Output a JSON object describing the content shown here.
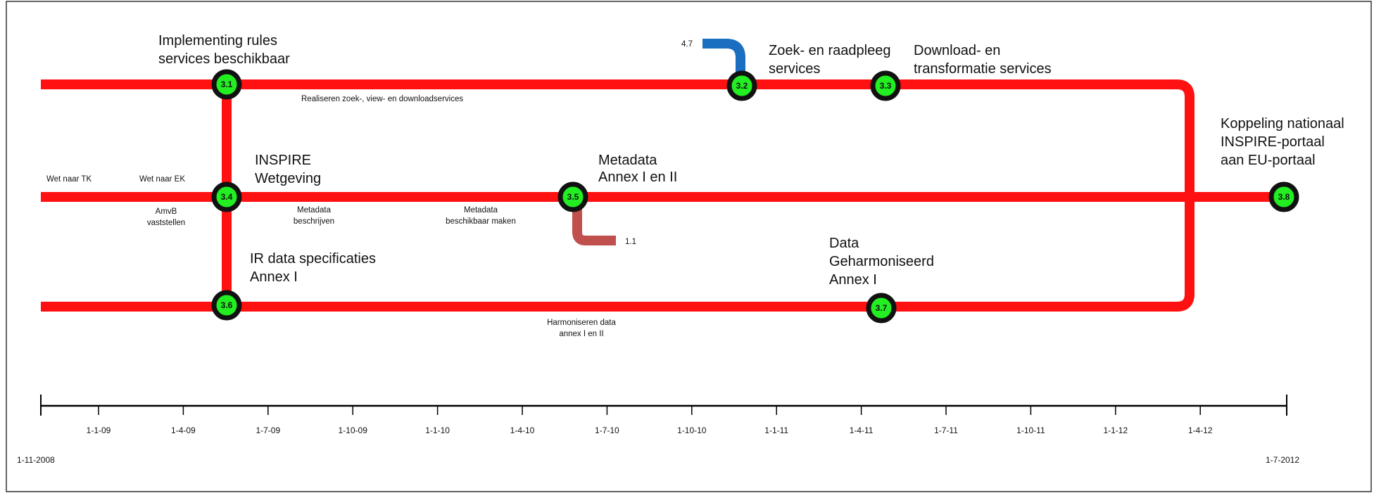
{
  "colors": {
    "line": "#ff1111",
    "node_fill": "#22ee22",
    "node_ring": "#111111",
    "blue_line": "#1a6fc0",
    "brown_line": "#c0504d",
    "axis": "#000000"
  },
  "nodes": {
    "n31": "3.1",
    "n32": "3.2",
    "n33": "3.3",
    "n34": "3.4",
    "n35": "3.5",
    "n36": "3.6",
    "n37": "3.7",
    "n38": "3.8"
  },
  "labels": {
    "implementing_1": "Implementing rules",
    "implementing_2": "services beschikbaar",
    "zoek_1": "Zoek- en raadpleeg",
    "zoek_2": "services",
    "download_1": "Download- en",
    "download_2": "transformatie services",
    "koppeling_1": "Koppeling nationaal",
    "koppeling_2": "INSPIRE-portaal",
    "koppeling_3": "aan EU-portaal",
    "inspire_1": "INSPIRE",
    "inspire_2": "Wetgeving",
    "metadata_annex_1": "Metadata",
    "metadata_annex_2": "Annex I en II",
    "ir_data_1": "IR data specificaties",
    "ir_data_2": "Annex I",
    "data_harm_1": "Data",
    "data_harm_2": "Geharmoniseerd",
    "data_harm_3": "Annex I"
  },
  "small_labels": {
    "realiseren": "Realiseren zoek-, view- en downloadservices",
    "wet_tk": "Wet naar TK",
    "wet_ek": "Wet naar EK",
    "amvb_1": "AmvB",
    "amvb_2": "vaststellen",
    "metadata_beschr_1": "Metadata",
    "metadata_beschr_2": "beschrijven",
    "metadata_besch_1": "Metadata",
    "metadata_besch_2": "beschikbaar maken",
    "harm_1": "Harmoniseren data",
    "harm_2": "annex I en II",
    "ref_47": "4.7",
    "ref_11": "1.1"
  },
  "timeline": {
    "start": "1-11-2008",
    "end": "1-7-2012",
    "ticks": [
      "1-1-09",
      "1-4-09",
      "1-7-09",
      "1-10-09",
      "1-1-10",
      "1-4-10",
      "1-7-10",
      "1-10-10",
      "1-1-11",
      "1-4-11",
      "1-7-11",
      "1-10-11",
      "1-1-12",
      "1-4-12"
    ]
  }
}
